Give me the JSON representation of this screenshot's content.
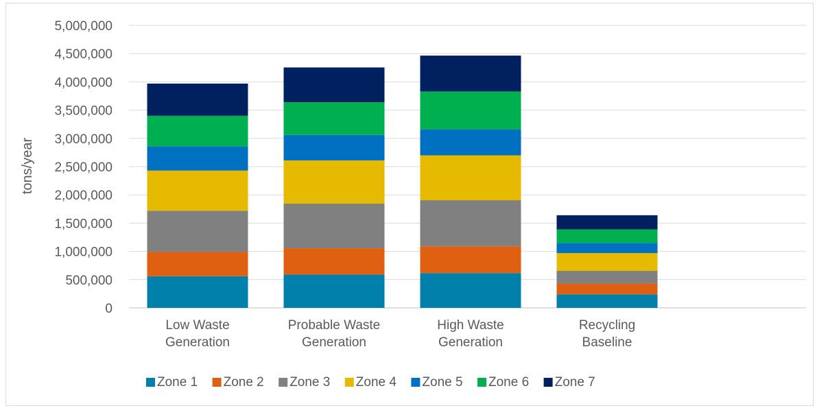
{
  "chart_data": {
    "type": "bar",
    "stacked": true,
    "categories": [
      [
        "Low Waste",
        "Generation"
      ],
      [
        "Probable Waste",
        "Generation"
      ],
      [
        "High Waste",
        "Generation"
      ],
      [
        "Recycling",
        "Baseline"
      ]
    ],
    "series": [
      {
        "name": "Zone 1",
        "color": "#0080AB",
        "values": [
          560000,
          590000,
          615000,
          240000
        ]
      },
      {
        "name": "Zone 2",
        "color": "#E06011",
        "values": [
          430000,
          465000,
          475000,
          190000
        ]
      },
      {
        "name": "Zone 3",
        "color": "#808080",
        "values": [
          730000,
          790000,
          815000,
          225000
        ]
      },
      {
        "name": "Zone 4",
        "color": "#E6BA00",
        "values": [
          710000,
          765000,
          795000,
          315000
        ]
      },
      {
        "name": "Zone 5",
        "color": "#0070C0",
        "values": [
          430000,
          450000,
          460000,
          180000
        ]
      },
      {
        "name": "Zone 6",
        "color": "#00B050",
        "values": [
          540000,
          580000,
          670000,
          240000
        ]
      },
      {
        "name": "Zone 7",
        "color": "#002060",
        "values": [
          570000,
          615000,
          635000,
          250000
        ]
      }
    ],
    "ylabel": "tons/year",
    "ylim": [
      0,
      5000000
    ],
    "yticks": [
      0,
      500000,
      1000000,
      1500000,
      2000000,
      2500000,
      3000000,
      3500000,
      4000000,
      4500000,
      5000000
    ],
    "ytick_labels": [
      "0",
      "500,000",
      "1,000,000",
      "1,500,000",
      "2,000,000",
      "2,500,000",
      "3,000,000",
      "3,500,000",
      "4,000,000",
      "4,500,000",
      "5,000,000"
    ],
    "grid": true,
    "legend": "bottom"
  }
}
